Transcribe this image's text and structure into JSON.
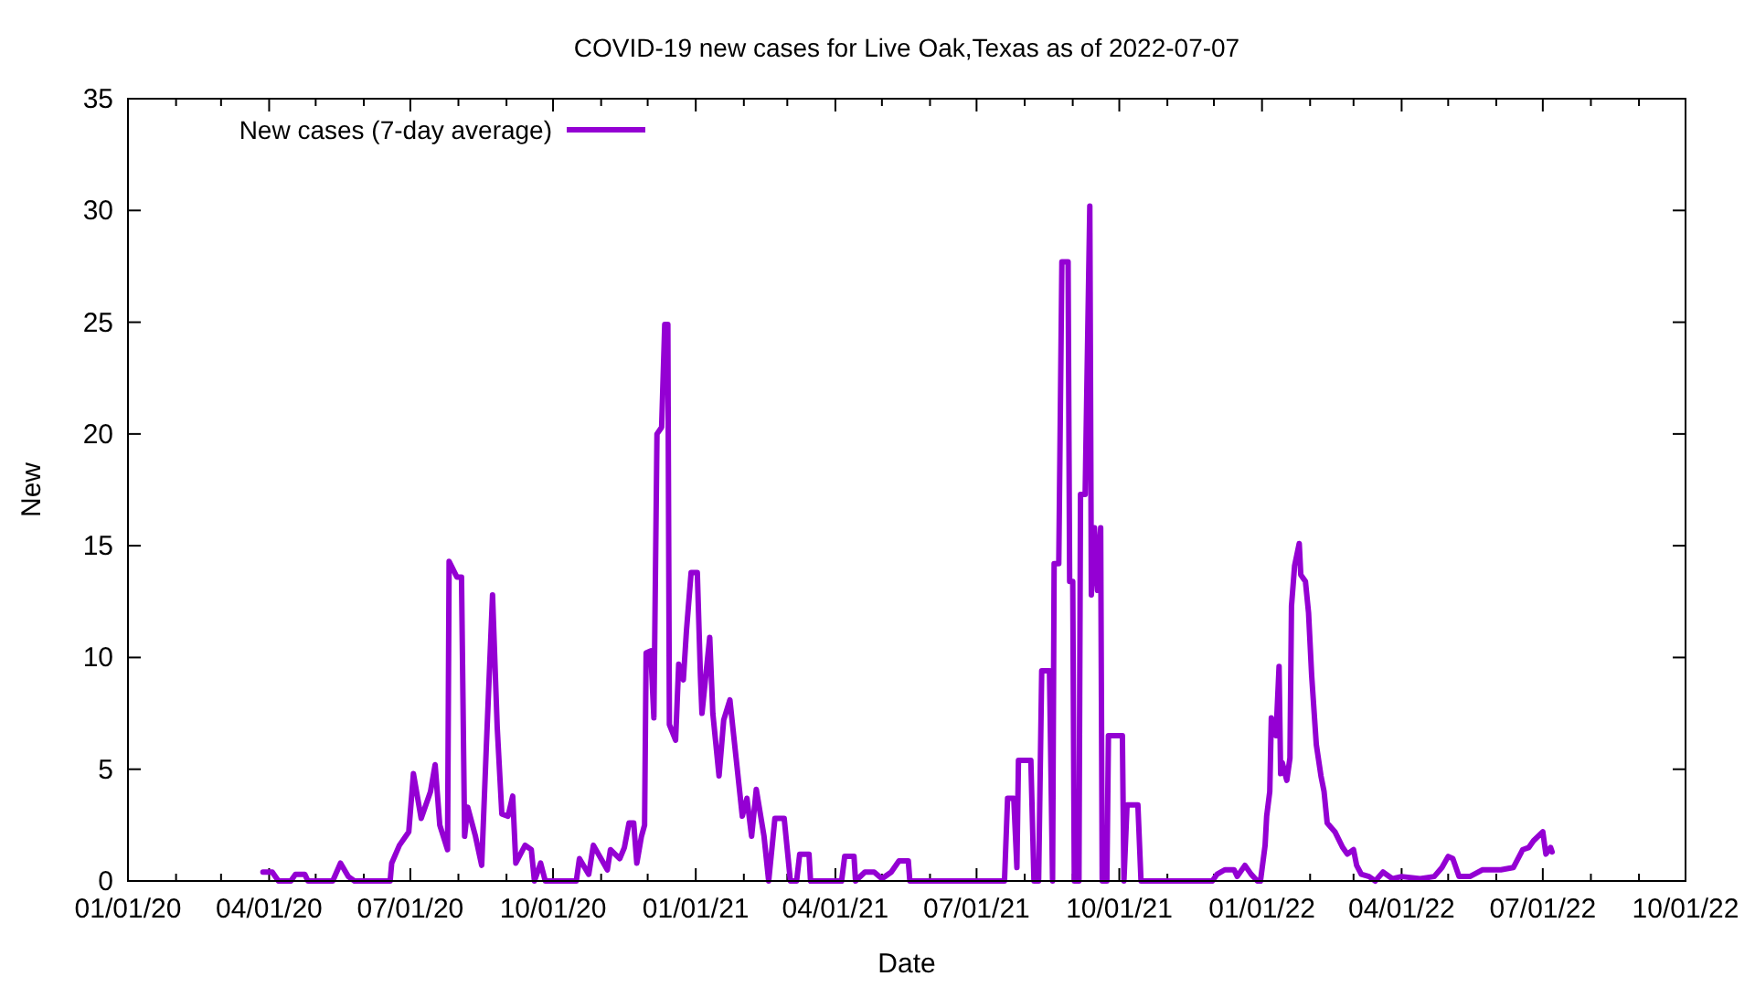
{
  "chart_data": {
    "type": "line",
    "title": "COVID-19 new cases for Live Oak,Texas as of 2022-07-07",
    "xlabel": "Date",
    "ylabel": "New",
    "legend": "top left",
    "marker": "none",
    "line_style": "solid",
    "grid": false,
    "xlim": [
      "2020-01-01",
      "2022-10-01"
    ],
    "xticks": [
      {
        "value": "2020-01-01",
        "label": "01/01/20"
      },
      {
        "value": "2020-02-01",
        "label": null
      },
      {
        "value": "2020-03-01",
        "label": null
      },
      {
        "value": "2020-04-01",
        "label": "04/01/20"
      },
      {
        "value": "2020-05-01",
        "label": null
      },
      {
        "value": "2020-06-01",
        "label": null
      },
      {
        "value": "2020-07-01",
        "label": "07/01/20"
      },
      {
        "value": "2020-08-01",
        "label": null
      },
      {
        "value": "2020-09-01",
        "label": null
      },
      {
        "value": "2020-10-01",
        "label": "10/01/20"
      },
      {
        "value": "2020-11-01",
        "label": null
      },
      {
        "value": "2020-12-01",
        "label": null
      },
      {
        "value": "2021-01-01",
        "label": "01/01/21"
      },
      {
        "value": "2021-02-01",
        "label": null
      },
      {
        "value": "2021-03-01",
        "label": null
      },
      {
        "value": "2021-04-01",
        "label": "04/01/21"
      },
      {
        "value": "2021-05-01",
        "label": null
      },
      {
        "value": "2021-06-01",
        "label": null
      },
      {
        "value": "2021-07-01",
        "label": "07/01/21"
      },
      {
        "value": "2021-08-01",
        "label": null
      },
      {
        "value": "2021-09-01",
        "label": null
      },
      {
        "value": "2021-10-01",
        "label": "10/01/21"
      },
      {
        "value": "2021-11-01",
        "label": null
      },
      {
        "value": "2021-12-01",
        "label": null
      },
      {
        "value": "2022-01-01",
        "label": "01/01/22"
      },
      {
        "value": "2022-02-01",
        "label": null
      },
      {
        "value": "2022-03-01",
        "label": null
      },
      {
        "value": "2022-04-01",
        "label": "04/01/22"
      },
      {
        "value": "2022-05-01",
        "label": null
      },
      {
        "value": "2022-06-01",
        "label": null
      },
      {
        "value": "2022-07-01",
        "label": "07/01/22"
      },
      {
        "value": "2022-08-01",
        "label": null
      },
      {
        "value": "2022-09-01",
        "label": null
      },
      {
        "value": "2022-10-01",
        "label": "10/01/22"
      }
    ],
    "ylim": [
      0,
      35
    ],
    "yticks": [
      0,
      5,
      10,
      15,
      20,
      25,
      30,
      35
    ],
    "series": [
      {
        "name": "New cases (7-day average)",
        "color": "#9400d3",
        "x": [
          "2020-03-28",
          "2020-04-03",
          "2020-04-07",
          "2020-04-15",
          "2020-04-18",
          "2020-04-24",
          "2020-04-26",
          "2020-05-12",
          "2020-05-17",
          "2020-05-22",
          "2020-05-26",
          "2020-06-18",
          "2020-06-19",
          "2020-06-24",
          "2020-06-30",
          "2020-07-03",
          "2020-07-08",
          "2020-07-14",
          "2020-07-17",
          "2020-07-20",
          "2020-07-25",
          "2020-07-26",
          "2020-07-31",
          "2020-08-03",
          "2020-08-05",
          "2020-08-07",
          "2020-08-12",
          "2020-08-16",
          "2020-08-19",
          "2020-08-23",
          "2020-08-26",
          "2020-08-29",
          "2020-09-02",
          "2020-09-05",
          "2020-09-07",
          "2020-09-13",
          "2020-09-17",
          "2020-09-19",
          "2020-09-23",
          "2020-09-26",
          "2020-10-16",
          "2020-10-18",
          "2020-10-24",
          "2020-10-27",
          "2020-11-05",
          "2020-11-07",
          "2020-11-13",
          "2020-11-16",
          "2020-11-19",
          "2020-11-22",
          "2020-11-24",
          "2020-11-27",
          "2020-11-29",
          "2020-11-30",
          "2020-12-03",
          "2020-12-05",
          "2020-12-07",
          "2020-12-10",
          "2020-12-12",
          "2020-12-14",
          "2020-12-15",
          "2020-12-19",
          "2020-12-21",
          "2020-12-24",
          "2020-12-26",
          "2020-12-29",
          "2021-01-02",
          "2021-01-04",
          "2021-01-05",
          "2021-01-10",
          "2021-01-12",
          "2021-01-16",
          "2021-01-19",
          "2021-01-23",
          "2021-01-27",
          "2021-01-31",
          "2021-02-03",
          "2021-02-06",
          "2021-02-09",
          "2021-02-14",
          "2021-02-17",
          "2021-02-21",
          "2021-02-27",
          "2021-03-03",
          "2021-03-07",
          "2021-03-09",
          "2021-03-15",
          "2021-03-16",
          "2021-04-05",
          "2021-04-07",
          "2021-04-13",
          "2021-04-14",
          "2021-04-20",
          "2021-04-26",
          "2021-05-01",
          "2021-05-07",
          "2021-05-12",
          "2021-05-18",
          "2021-05-19",
          "2021-07-19",
          "2021-07-21",
          "2021-07-25",
          "2021-07-27",
          "2021-07-28",
          "2021-08-05",
          "2021-08-07",
          "2021-08-10",
          "2021-08-12",
          "2021-08-17",
          "2021-08-19",
          "2021-08-20",
          "2021-08-23",
          "2021-08-25",
          "2021-08-29",
          "2021-08-30",
          "2021-09-01",
          "2021-09-02",
          "2021-09-05",
          "2021-09-06",
          "2021-09-09",
          "2021-09-12",
          "2021-09-13",
          "2021-09-15",
          "2021-09-17",
          "2021-09-19",
          "2021-09-20",
          "2021-09-23",
          "2021-09-24",
          "2021-10-03",
          "2021-10-04",
          "2021-10-06",
          "2021-10-13",
          "2021-10-15",
          "2021-11-30",
          "2021-12-03",
          "2021-12-08",
          "2021-12-14",
          "2021-12-16",
          "2021-12-21",
          "2021-12-25",
          "2021-12-29",
          "2021-12-31",
          "2022-01-03",
          "2022-01-04",
          "2022-01-06",
          "2022-01-07",
          "2022-01-10",
          "2022-01-12",
          "2022-01-13",
          "2022-01-14",
          "2022-01-17",
          "2022-01-19",
          "2022-01-20",
          "2022-01-22",
          "2022-01-25",
          "2022-01-26",
          "2022-01-29",
          "2022-01-31",
          "2022-02-02",
          "2022-02-05",
          "2022-02-08",
          "2022-02-10",
          "2022-02-12",
          "2022-02-17",
          "2022-02-22",
          "2022-02-25",
          "2022-03-01",
          "2022-03-03",
          "2022-03-06",
          "2022-03-11",
          "2022-03-15",
          "2022-03-20",
          "2022-03-26",
          "2022-04-01",
          "2022-04-13",
          "2022-04-22",
          "2022-04-27",
          "2022-05-01",
          "2022-05-04",
          "2022-05-08",
          "2022-05-15",
          "2022-05-23",
          "2022-06-04",
          "2022-06-12",
          "2022-06-18",
          "2022-06-22",
          "2022-06-25",
          "2022-07-01",
          "2022-07-03",
          "2022-07-06",
          "2022-07-07"
        ],
        "values": [
          0.4,
          0.4,
          0,
          0,
          0.3,
          0.3,
          0,
          0,
          0.8,
          0.2,
          0,
          0,
          0.8,
          1.6,
          2.2,
          4.8,
          2.8,
          4.0,
          5.2,
          2.5,
          1.4,
          14.3,
          13.6,
          13.6,
          2.0,
          3.3,
          2.0,
          0.7,
          6.0,
          12.8,
          6.9,
          3.0,
          2.9,
          3.8,
          0.8,
          1.6,
          1.4,
          0,
          0.8,
          0,
          0,
          1.0,
          0.3,
          1.6,
          0.5,
          1.4,
          1.0,
          1.5,
          2.6,
          2.6,
          0.8,
          2.0,
          2.5,
          10.2,
          10.3,
          7.3,
          20.0,
          20.3,
          24.9,
          24.9,
          7.0,
          6.3,
          9.7,
          9.0,
          11.2,
          13.8,
          13.8,
          9.2,
          7.5,
          10.9,
          7.5,
          4.7,
          7.2,
          8.1,
          5.5,
          2.9,
          3.7,
          2.0,
          4.1,
          2.0,
          0,
          2.8,
          2.8,
          0,
          0,
          1.2,
          1.2,
          0,
          0,
          1.1,
          1.1,
          0,
          0.4,
          0.4,
          0.1,
          0.4,
          0.9,
          0.9,
          0,
          0,
          3.7,
          3.7,
          0.6,
          5.4,
          5.4,
          0,
          0,
          9.4,
          9.4,
          0,
          14.2,
          14.2,
          27.7,
          27.7,
          13.4,
          13.4,
          0,
          0,
          17.3,
          17.3,
          30.2,
          12.8,
          15.8,
          13.0,
          15.8,
          0,
          0,
          6.5,
          6.5,
          0,
          3.4,
          3.4,
          0,
          0,
          0.3,
          0.5,
          0.5,
          0.2,
          0.7,
          0.3,
          0,
          0,
          1.6,
          2.9,
          4.0,
          7.3,
          6.5,
          9.6,
          4.8,
          5.3,
          4.5,
          5.5,
          12.3,
          14.1,
          15.1,
          13.7,
          13.4,
          12.0,
          9.2,
          6.1,
          4.7,
          4.0,
          2.6,
          2.2,
          1.5,
          1.2,
          1.4,
          0.7,
          0.3,
          0.2,
          0,
          0.4,
          0.1,
          0.2,
          0.1,
          0.2,
          0.6,
          1.1,
          1.0,
          0.2,
          0.2,
          0.5,
          0.5,
          0.6,
          1.4,
          1.5,
          1.8,
          2.2,
          1.2,
          1.5,
          1.3
        ]
      }
    ]
  }
}
